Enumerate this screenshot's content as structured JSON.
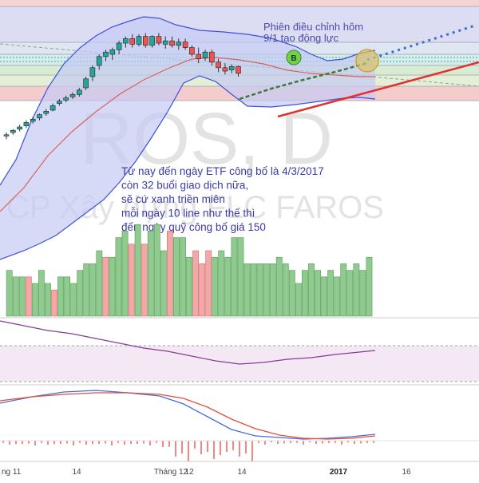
{
  "watermark": {
    "symbol": "ROS, D",
    "company": "CP Xây dựng FLC FAROS"
  },
  "annotations": {
    "note_top_line1": "Phiên điều chỉnh hôm",
    "note_top_line2": "9/1 tạo động lực",
    "note_main": [
      "Từ nay đến ngày ETF công bố là 4/3/2017",
      "còn 32 buổi giao dịch nữa,",
      "sẽ cứ xanh triền miên",
      " mỗi ngày 10 line như thế thì",
      "đến ngày quỹ công bố giá 150"
    ],
    "marker_label": "B"
  },
  "colors": {
    "up": "#26a69a",
    "down": "#ef5350",
    "vol_up": "#8fca8f",
    "vol_down": "#f4a7a7",
    "band": "#3f51d9",
    "band_fill": "#c5cbf3",
    "ma": "#d96060",
    "trend_red": "#e03030",
    "trend_dash": "#3a7a3a",
    "projection": "#3d6fcf",
    "osc": "#8a3a9a",
    "macd_line": "#4a6ad8",
    "macd_signal": "#e0503a",
    "macd_hist": "#ef5350"
  },
  "x_axis": {
    "ticks": [
      "ng 11",
      "14",
      "Tháng 12",
      "12",
      "14",
      "2017",
      "16"
    ]
  },
  "chart_data": {
    "type": "candlestick",
    "title": "ROS, D",
    "candles": [
      {
        "o": 7,
        "h": 10,
        "l": 4,
        "c": 8,
        "up": true
      },
      {
        "o": 10,
        "h": 13,
        "l": 8,
        "c": 12,
        "up": true
      },
      {
        "o": 13,
        "h": 17,
        "l": 11,
        "c": 15,
        "up": true
      },
      {
        "o": 16,
        "h": 21,
        "l": 14,
        "c": 19,
        "up": true
      },
      {
        "o": 20,
        "h": 24,
        "l": 18,
        "c": 22,
        "up": true
      },
      {
        "o": 23,
        "h": 27,
        "l": 21,
        "c": 26,
        "up": true
      },
      {
        "o": 27,
        "h": 31,
        "l": 25,
        "c": 29,
        "up": true
      },
      {
        "o": 30,
        "h": 36,
        "l": 29,
        "c": 34,
        "up": true
      },
      {
        "o": 36,
        "h": 40,
        "l": 34,
        "c": 38,
        "up": true
      },
      {
        "o": 39,
        "h": 43,
        "l": 37,
        "c": 41,
        "up": true
      },
      {
        "o": 42,
        "h": 46,
        "l": 40,
        "c": 44,
        "up": true
      },
      {
        "o": 44,
        "h": 50,
        "l": 42,
        "c": 48,
        "up": true
      },
      {
        "o": 50,
        "h": 60,
        "l": 48,
        "c": 58,
        "up": true
      },
      {
        "o": 60,
        "h": 70,
        "l": 56,
        "c": 68,
        "up": true
      },
      {
        "o": 70,
        "h": 80,
        "l": 66,
        "c": 78,
        "up": true
      },
      {
        "o": 78,
        "h": 84,
        "l": 74,
        "c": 82,
        "up": true
      },
      {
        "o": 80,
        "h": 86,
        "l": 75,
        "c": 84,
        "up": true
      },
      {
        "o": 84,
        "h": 92,
        "l": 80,
        "c": 90,
        "up": true
      },
      {
        "o": 90,
        "h": 96,
        "l": 86,
        "c": 94,
        "up": true
      },
      {
        "o": 94,
        "h": 98,
        "l": 86,
        "c": 89,
        "up": false
      },
      {
        "o": 89,
        "h": 98,
        "l": 87,
        "c": 96,
        "up": true
      },
      {
        "o": 96,
        "h": 99,
        "l": 86,
        "c": 88,
        "up": false
      },
      {
        "o": 88,
        "h": 97,
        "l": 86,
        "c": 96,
        "up": true
      },
      {
        "o": 96,
        "h": 99,
        "l": 88,
        "c": 90,
        "up": false
      },
      {
        "o": 89,
        "h": 96,
        "l": 85,
        "c": 92,
        "up": true
      },
      {
        "o": 92,
        "h": 96,
        "l": 86,
        "c": 88,
        "up": false
      },
      {
        "o": 88,
        "h": 94,
        "l": 84,
        "c": 91,
        "up": true
      },
      {
        "o": 91,
        "h": 94,
        "l": 84,
        "c": 86,
        "up": false
      },
      {
        "o": 86,
        "h": 88,
        "l": 78,
        "c": 80,
        "up": false
      },
      {
        "o": 80,
        "h": 86,
        "l": 72,
        "c": 76,
        "up": false
      },
      {
        "o": 77,
        "h": 84,
        "l": 74,
        "c": 82,
        "up": true
      },
      {
        "o": 82,
        "h": 84,
        "l": 70,
        "c": 73,
        "up": false
      },
      {
        "o": 73,
        "h": 76,
        "l": 64,
        "c": 68,
        "up": false
      },
      {
        "o": 68,
        "h": 72,
        "l": 62,
        "c": 65,
        "up": false
      },
      {
        "o": 66,
        "h": 71,
        "l": 63,
        "c": 69,
        "up": true
      },
      {
        "o": 69,
        "h": 70,
        "l": 60,
        "c": 63,
        "up": false
      }
    ],
    "volume": [
      0,
      7,
      6,
      6,
      6,
      5,
      7,
      5,
      4,
      6,
      6,
      5,
      7,
      8,
      8,
      10,
      9,
      9,
      12,
      13,
      11,
      14,
      11,
      13,
      14,
      10,
      13,
      12,
      12,
      9,
      10,
      8,
      10,
      9,
      10,
      9,
      12,
      12,
      8,
      8,
      8,
      8,
      8,
      9,
      8,
      7,
      5,
      7,
      8,
      7,
      6,
      7,
      6,
      8,
      7,
      8,
      7,
      9,
      0
    ],
    "volume_colors": [
      "up",
      "up",
      "up",
      "up",
      "down",
      "up",
      "up",
      "up",
      "down",
      "up",
      "up",
      "up",
      "up",
      "up",
      "up",
      "up",
      "down",
      "up",
      "up",
      "up",
      "down",
      "up",
      "down",
      "up",
      "up",
      "up",
      "down",
      "up",
      "up",
      "up",
      "down",
      "down",
      "down",
      "up",
      "up",
      "up",
      "up",
      "up",
      "up",
      "up",
      "up",
      "up",
      "up",
      "up",
      "up",
      "up",
      "up",
      "up",
      "up",
      "up",
      "up",
      "up",
      "up",
      "up",
      "up",
      "up",
      "up",
      "up",
      "up"
    ]
  }
}
